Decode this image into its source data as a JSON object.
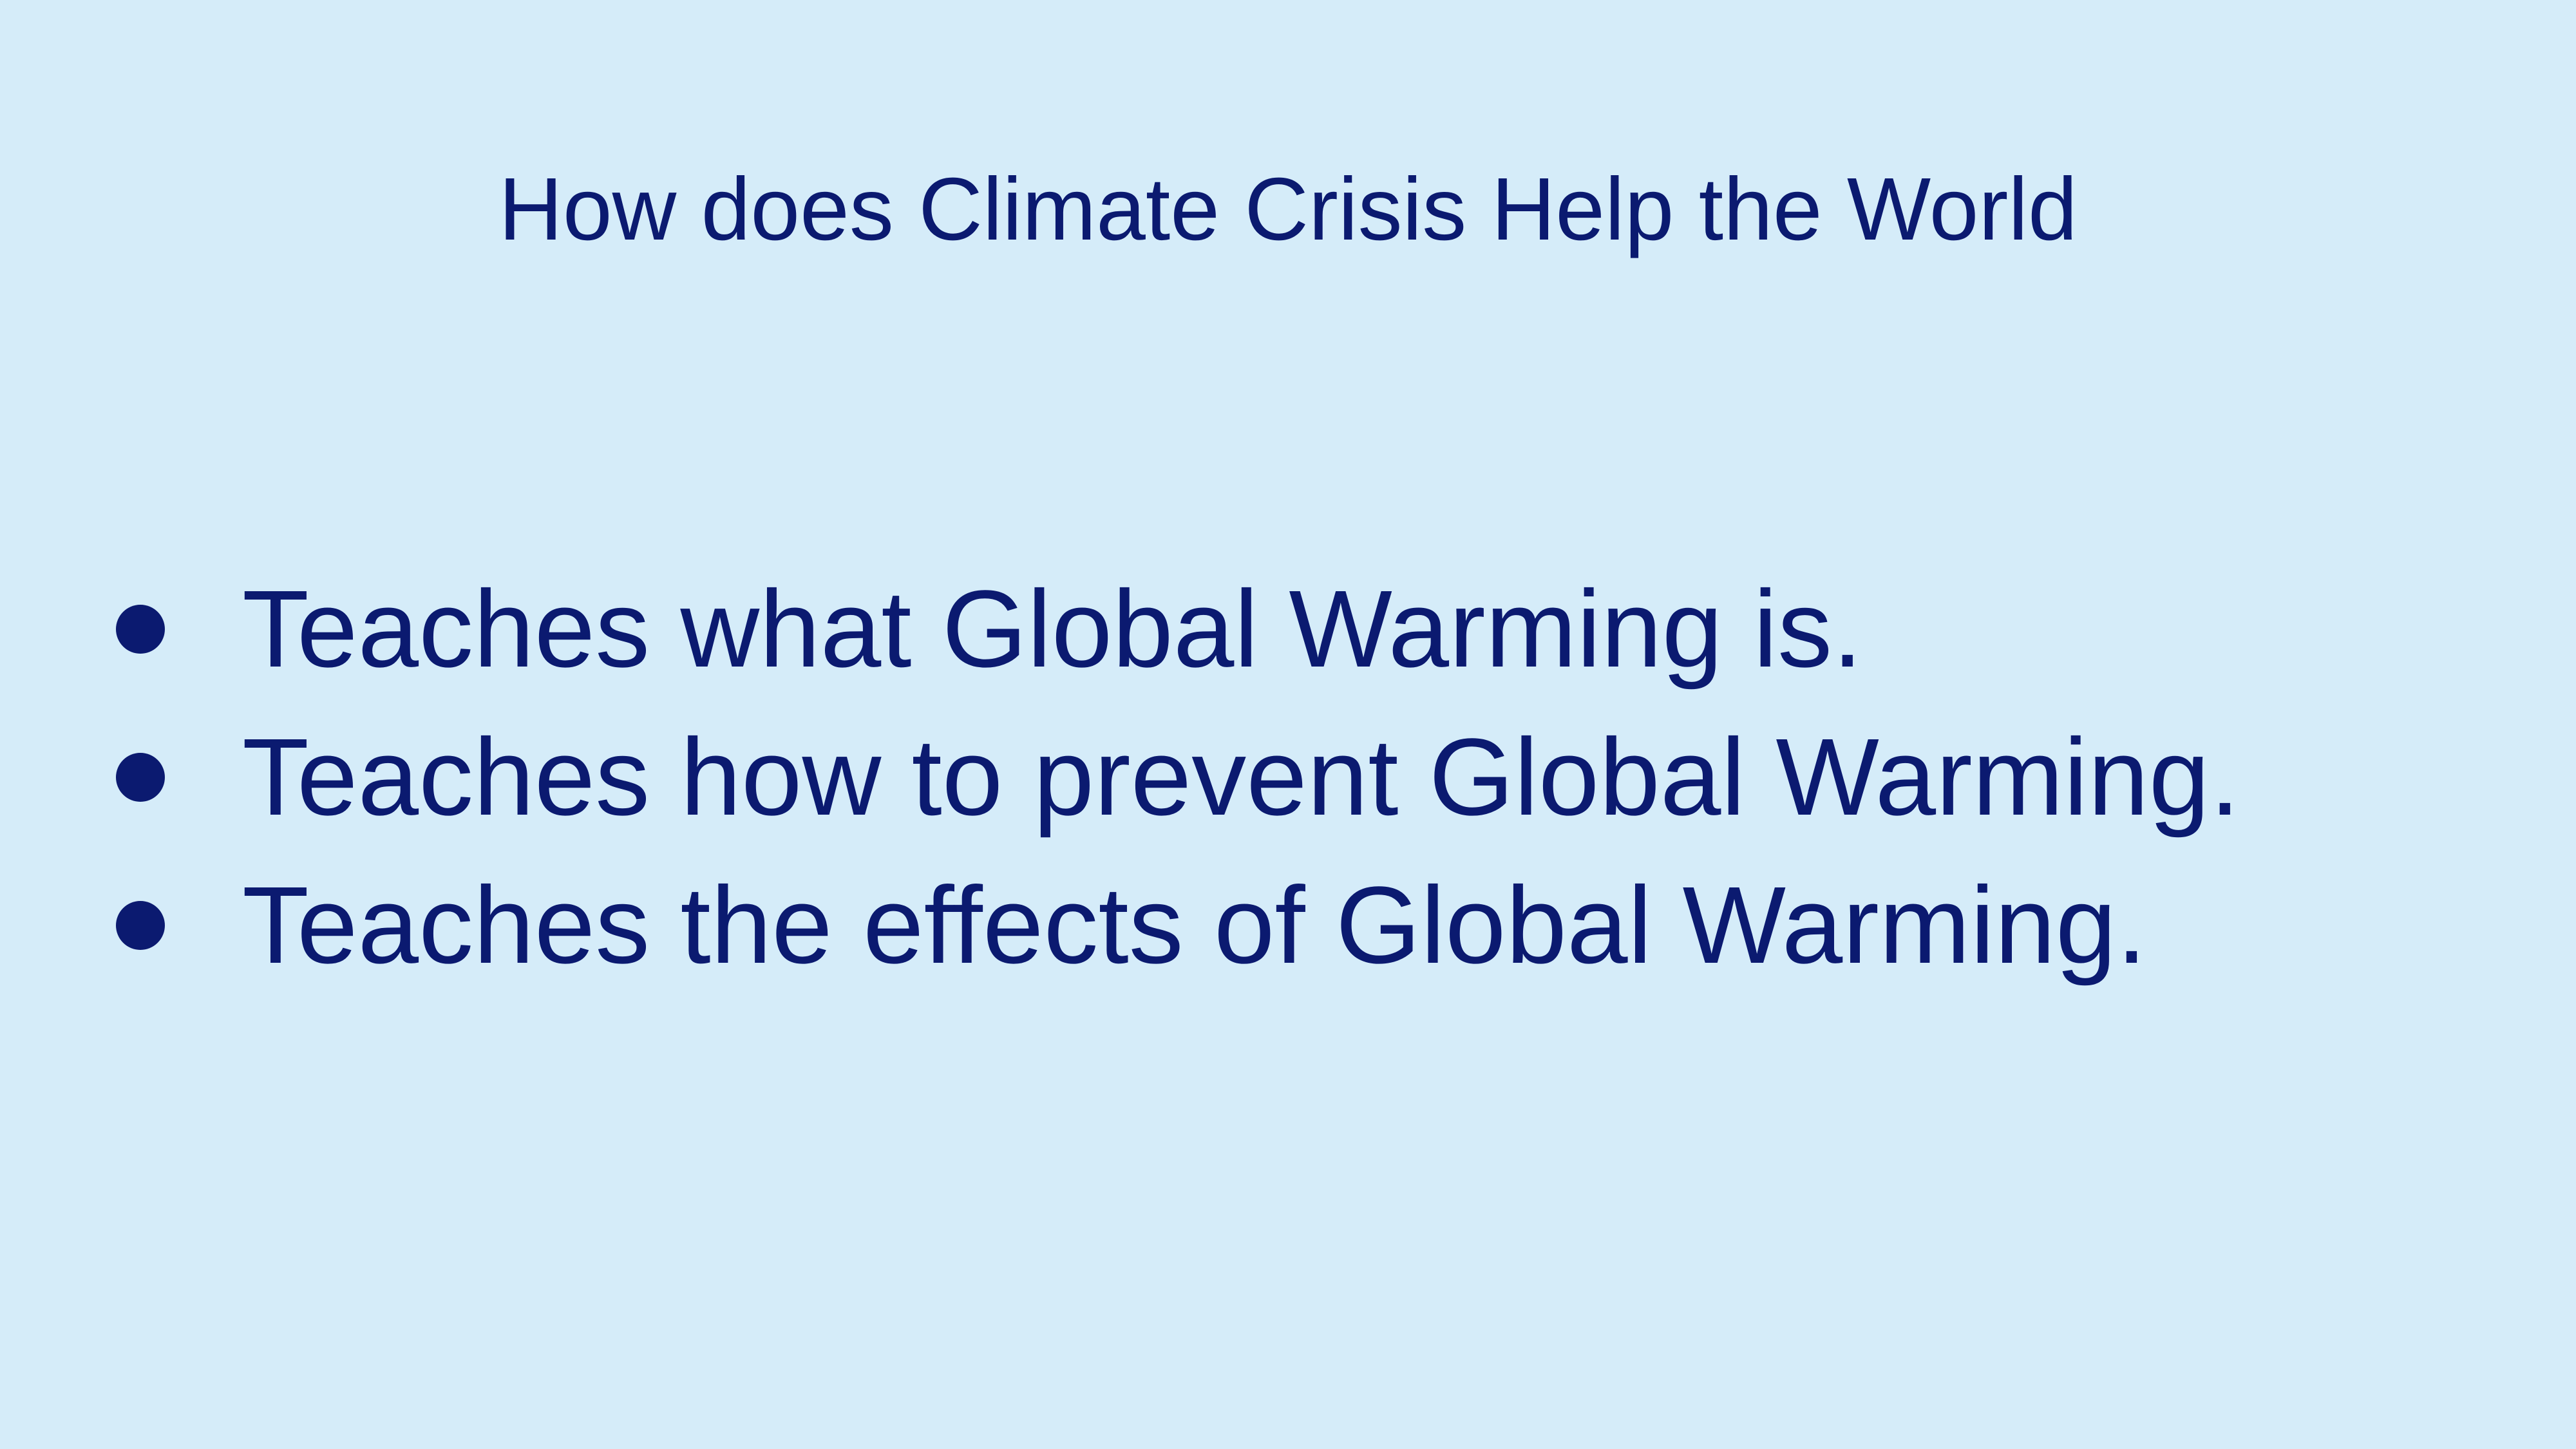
{
  "slide": {
    "title": "How does Climate Crisis Help the World",
    "bullets": [
      "Teaches what Global Warming is.",
      "Teaches how to prevent Global Warming.",
      "Teaches the effects of Global Warming."
    ]
  },
  "colors": {
    "background": "#D5ECF9",
    "text": "#0B1A70"
  }
}
